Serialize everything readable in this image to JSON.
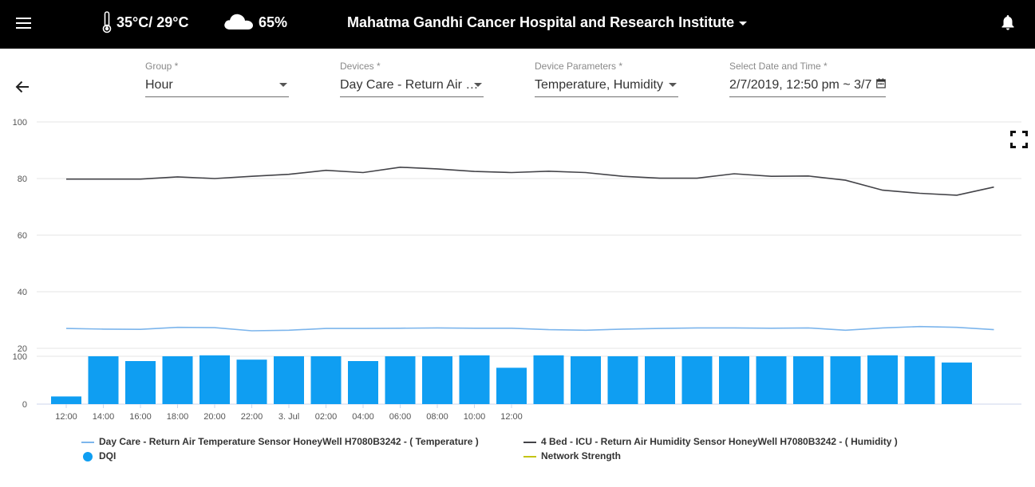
{
  "header": {
    "temperature": "35°C/ 29°C",
    "humidity": "65%",
    "hospital": "Mahatma Gandhi Cancer Hospital and Research Institute",
    "icons": [
      "menu-icon",
      "thermometer-icon",
      "cloud-icon",
      "bell-icon"
    ]
  },
  "filters": {
    "group": {
      "label": "Group *",
      "value": "Hour"
    },
    "devices": {
      "label": "Devices *",
      "value": "Day Care - Return Air …"
    },
    "parameters": {
      "label": "Device Parameters *",
      "value": "Temperature, Humidity"
    },
    "datetime": {
      "label": "Select Date and Time *",
      "value": "2/7/2019, 12:50 pm ~ 3/7"
    }
  },
  "colors": {
    "temperature": "#7cb5ec",
    "humidity": "#434348",
    "dqi": "#0f9ef2",
    "network": "#c4c414"
  },
  "chart_data": {
    "type": "line",
    "x_ticks": [
      "12:00",
      "14:00",
      "16:00",
      "18:00",
      "20:00",
      "22:00",
      "3. Jul",
      "02:00",
      "04:00",
      "06:00",
      "08:00",
      "10:00",
      "12:00"
    ],
    "upper_yaxis": {
      "range": [
        20,
        100
      ],
      "ticks": [
        20,
        40,
        60,
        80,
        100
      ]
    },
    "lower_yaxis": {
      "range": [
        0,
        100
      ],
      "ticks": [
        0,
        100
      ]
    },
    "series": [
      {
        "name": "Day Care - Return Air Temperature Sensor HoneyWell H7080B3242 - ( Temperature )",
        "values": [
          27,
          26.8,
          26.7,
          27.4,
          27.3,
          26.2,
          26.4,
          27,
          27,
          27.1,
          27.2,
          27.1,
          27.1,
          26.6,
          26.4,
          26.8,
          27,
          27.2,
          27.2,
          27.1,
          27.2,
          26.4,
          27.2,
          27.7,
          27.4,
          26.6
        ]
      },
      {
        "name": "4 Bed - ICU - Return Air Humidity Sensor HoneyWell H7080B3242 - ( Humidity )",
        "values": [
          79.8,
          79.8,
          79.8,
          80.6,
          80,
          80.8,
          81.5,
          82.9,
          82.1,
          84,
          83.4,
          82.5,
          82.1,
          82.6,
          82.1,
          80.8,
          80.1,
          80.1,
          81.7,
          80.8,
          80.9,
          79.4,
          75.9,
          74.8,
          74.1,
          77
        ]
      },
      {
        "name": "DQI",
        "type": "column",
        "values": [
          16,
          100,
          90,
          100,
          102,
          93,
          100,
          100,
          90,
          100,
          100,
          102,
          76,
          102,
          100,
          100,
          100,
          100,
          100,
          100,
          100,
          100,
          102,
          100,
          87
        ]
      },
      {
        "name": "Network Strength",
        "values": []
      }
    ]
  }
}
